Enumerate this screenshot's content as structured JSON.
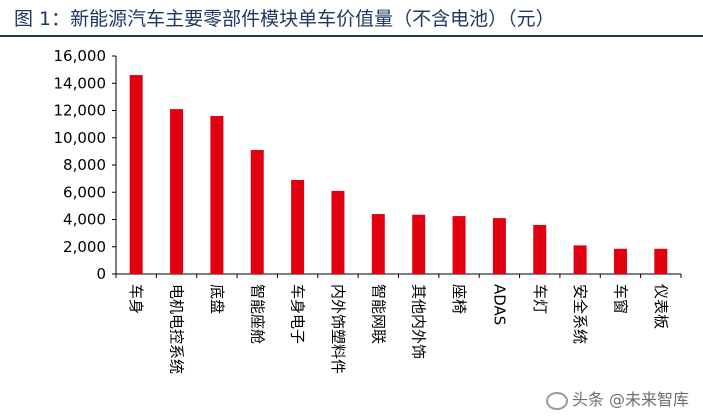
{
  "figure": {
    "title": "图 1：新能源汽车主要零部件模块单车价值量（不含电池）（元）",
    "watermark": "头条 @未来智库"
  },
  "chart_data": {
    "type": "bar",
    "title": "",
    "xlabel": "",
    "ylabel": "",
    "ylim": [
      0,
      16000
    ],
    "yticks": [
      "0",
      "2,000",
      "4,000",
      "6,000",
      "8,000",
      "10,000",
      "12,000",
      "14,000",
      "16,000"
    ],
    "grid": false,
    "bar_color": "#e0000f",
    "categories": [
      "车身",
      "电机电控系统",
      "底盘",
      "智能座舱",
      "车身电子",
      "内外饰塑料件",
      "智能网联",
      "其他内外饰",
      "座椅",
      "ADAS",
      "车灯",
      "安全系统",
      "车窗",
      "仪表板"
    ],
    "values": [
      14600,
      12100,
      11600,
      9100,
      6900,
      6100,
      4400,
      4350,
      4250,
      4100,
      3600,
      2100,
      1850,
      1850
    ]
  }
}
